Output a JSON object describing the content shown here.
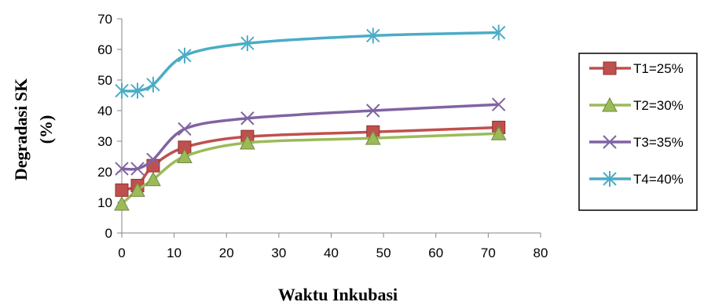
{
  "chart_data": {
    "type": "line",
    "title": "",
    "xlabel": "Waktu Inkubasi",
    "ylabel": [
      "Degradasi SK",
      "(%)"
    ],
    "x": [
      0,
      3,
      6,
      12,
      24,
      48,
      72
    ],
    "xlim": [
      0,
      80
    ],
    "ylim": [
      0,
      70
    ],
    "xticks": [
      0,
      10,
      20,
      30,
      40,
      50,
      60,
      70,
      80
    ],
    "yticks": [
      0,
      10,
      20,
      30,
      40,
      50,
      60,
      70
    ],
    "grid": false,
    "legend_position": "right",
    "series": [
      {
        "name": "T1=25%",
        "color": "#c0504d",
        "marker": "square",
        "values": [
          14,
          15.5,
          22,
          28,
          31.5,
          33,
          34.5
        ]
      },
      {
        "name": "T2=30%",
        "color": "#9bbb59",
        "marker": "triangle",
        "values": [
          9.5,
          14,
          17.5,
          25,
          29.5,
          31,
          32.5
        ]
      },
      {
        "name": "T3=35%",
        "color": "#8064a2",
        "marker": "x",
        "values": [
          21,
          21,
          24,
          34,
          37.5,
          40,
          42
        ]
      },
      {
        "name": "T4=40%",
        "color": "#4bacc6",
        "marker": "star",
        "values": [
          46.5,
          46.5,
          48.5,
          58,
          62,
          64.5,
          65.5
        ]
      }
    ]
  }
}
